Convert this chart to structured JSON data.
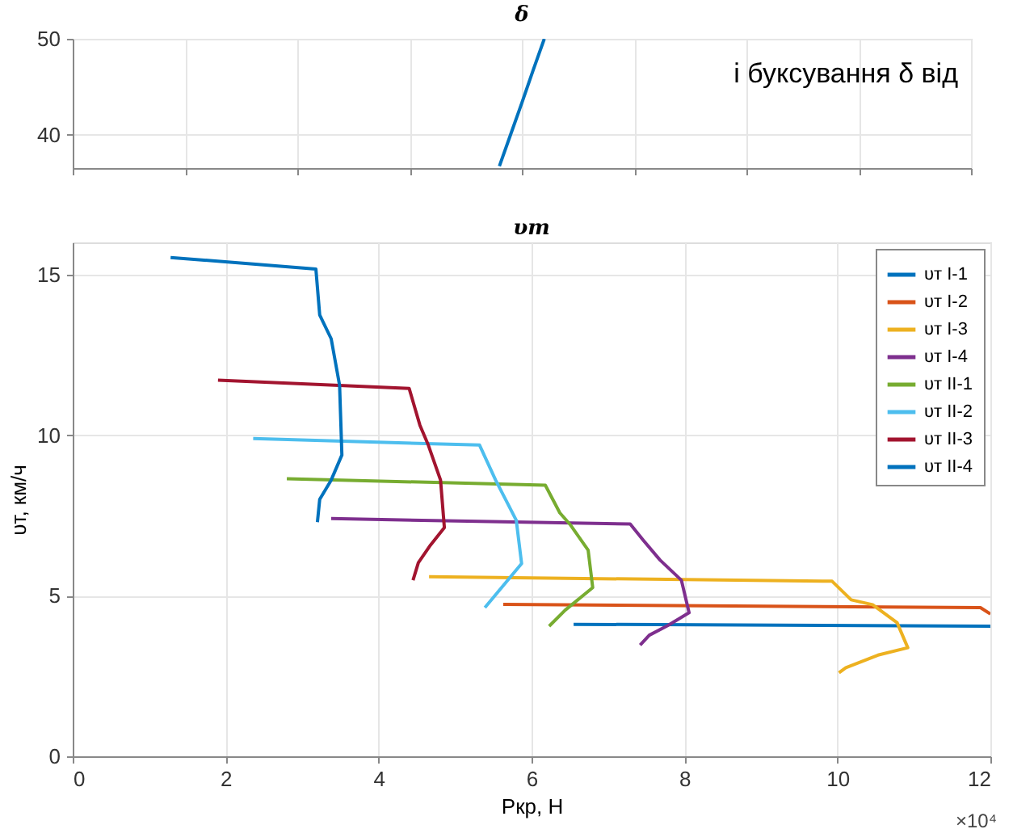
{
  "chart_data": [
    {
      "type": "line",
      "title": "δ",
      "categories": [
        null,
        null,
        null,
        null,
        null,
        null,
        null,
        null,
        null,
        null,
        null,
        null,
        null,
        null,
        null,
        null,
        null,
        null,
        null,
        null,
        null,
        null,
        null,
        null,
        null,
        null,
        null,
        null,
        null,
        null,
        null,
        null,
        null,
        null,
        null,
        null,
        null,
        null,
        null,
        null,
        null,
        null,
        null,
        null,
        null,
        null,
        null,
        null,
        null,
        null,
        null,
        null,
        null,
        null,
        null,
        null,
        null,
        null,
        null,
        null,
        null,
        null,
        null,
        null,
        null,
        null,
        null,
        null,
        null,
        null,
        null,
        null,
        null,
        null,
        null,
        null,
        null,
        null,
        null,
        null,
        null
      ],
      "ylim": [
        36.5,
        50
      ],
      "yticks": [
        40,
        50
      ],
      "grid": true,
      "annotations": [
        "і буксування δ від"
      ],
      "series": [
        {
          "color": "#0072bd",
          "values": [
            null,
            null,
            null,
            null,
            null,
            null,
            null,
            null,
            null,
            null,
            null,
            null,
            null,
            null,
            null,
            null,
            null,
            null,
            null,
            null,
            null,
            null,
            null,
            null,
            null,
            null,
            null,
            null,
            null,
            null,
            null,
            null,
            null,
            null,
            null,
            null,
            null,
            null,
            36.7,
            40.0,
            43.3,
            46.7,
            50.0,
            null,
            null,
            null,
            null,
            null,
            null,
            null,
            null,
            null,
            null,
            null,
            null,
            null,
            null,
            null,
            null,
            null,
            null,
            null,
            null,
            null,
            null,
            null,
            null,
            null,
            null,
            null,
            null,
            null,
            null,
            null,
            null,
            null,
            null,
            null,
            null,
            null,
            null
          ]
        }
      ]
    },
    {
      "type": "line",
      "title": "υт",
      "xlabel": "Pкр, Н",
      "ylabel": "υт, км/ч",
      "xlim": [
        0,
        12
      ],
      "xticks": [
        0,
        2,
        4,
        6,
        8,
        10,
        12
      ],
      "ylim": [
        0,
        16
      ],
      "yticks": [
        0,
        5,
        10,
        15
      ],
      "grid": true,
      "legend": "top right",
      "annotations": [
        "×10⁴"
      ],
      "series": [
        {
          "name": "υт I-1",
          "color": "#0072bd",
          "x": [
            6.55,
            12.0
          ],
          "values": [
            4.11,
            4.05
          ]
        },
        {
          "name": "υт I-2",
          "color": "#d95319",
          "x": [
            5.63,
            11.87,
            12.0
          ],
          "values": [
            4.73,
            4.63,
            4.43
          ]
        },
        {
          "name": "υт I-3",
          "color": "#edb120",
          "x": [
            4.66,
            9.93,
            10.18,
            10.46,
            10.78,
            10.92,
            10.53,
            10.11,
            10.02
          ],
          "values": [
            5.59,
            5.45,
            4.87,
            4.72,
            4.16,
            3.38,
            3.15,
            2.76,
            2.6
          ]
        },
        {
          "name": "υт I-4",
          "color": "#7e2f8e",
          "x": [
            3.38,
            7.29,
            7.46,
            7.68,
            7.96,
            8.06,
            7.78,
            7.54,
            7.42
          ],
          "values": [
            7.4,
            7.23,
            6.73,
            6.11,
            5.48,
            4.47,
            4.07,
            3.77,
            3.46
          ]
        },
        {
          "name": "υт II-1",
          "color": "#77ac30",
          "x": [
            2.8,
            6.18,
            6.37,
            6.51,
            6.74,
            6.8,
            6.44,
            6.23
          ],
          "values": [
            8.64,
            8.44,
            7.58,
            7.2,
            6.42,
            5.25,
            4.55,
            4.05
          ]
        },
        {
          "name": "υт II-2",
          "color": "#4dbeee",
          "x": [
            2.36,
            5.32,
            5.53,
            5.8,
            5.87,
            5.39
          ],
          "values": [
            9.89,
            9.69,
            8.6,
            7.35,
            6.0,
            4.63
          ]
        },
        {
          "name": "υт II-3",
          "color": "#a2142f",
          "x": [
            1.9,
            4.4,
            4.54,
            4.65,
            4.81,
            4.86,
            4.68,
            4.52,
            4.45
          ],
          "values": [
            11.71,
            11.45,
            10.31,
            9.69,
            8.6,
            7.12,
            6.58,
            6.03,
            5.48
          ]
        },
        {
          "name": "υт II-4",
          "color": "#0072bd",
          "x": [
            1.28,
            3.18,
            3.23,
            3.38,
            3.49,
            3.52,
            3.38,
            3.23,
            3.2
          ],
          "values": [
            15.53,
            15.17,
            13.74,
            13.0,
            11.55,
            9.38,
            8.6,
            8.0,
            7.29
          ]
        }
      ]
    }
  ]
}
